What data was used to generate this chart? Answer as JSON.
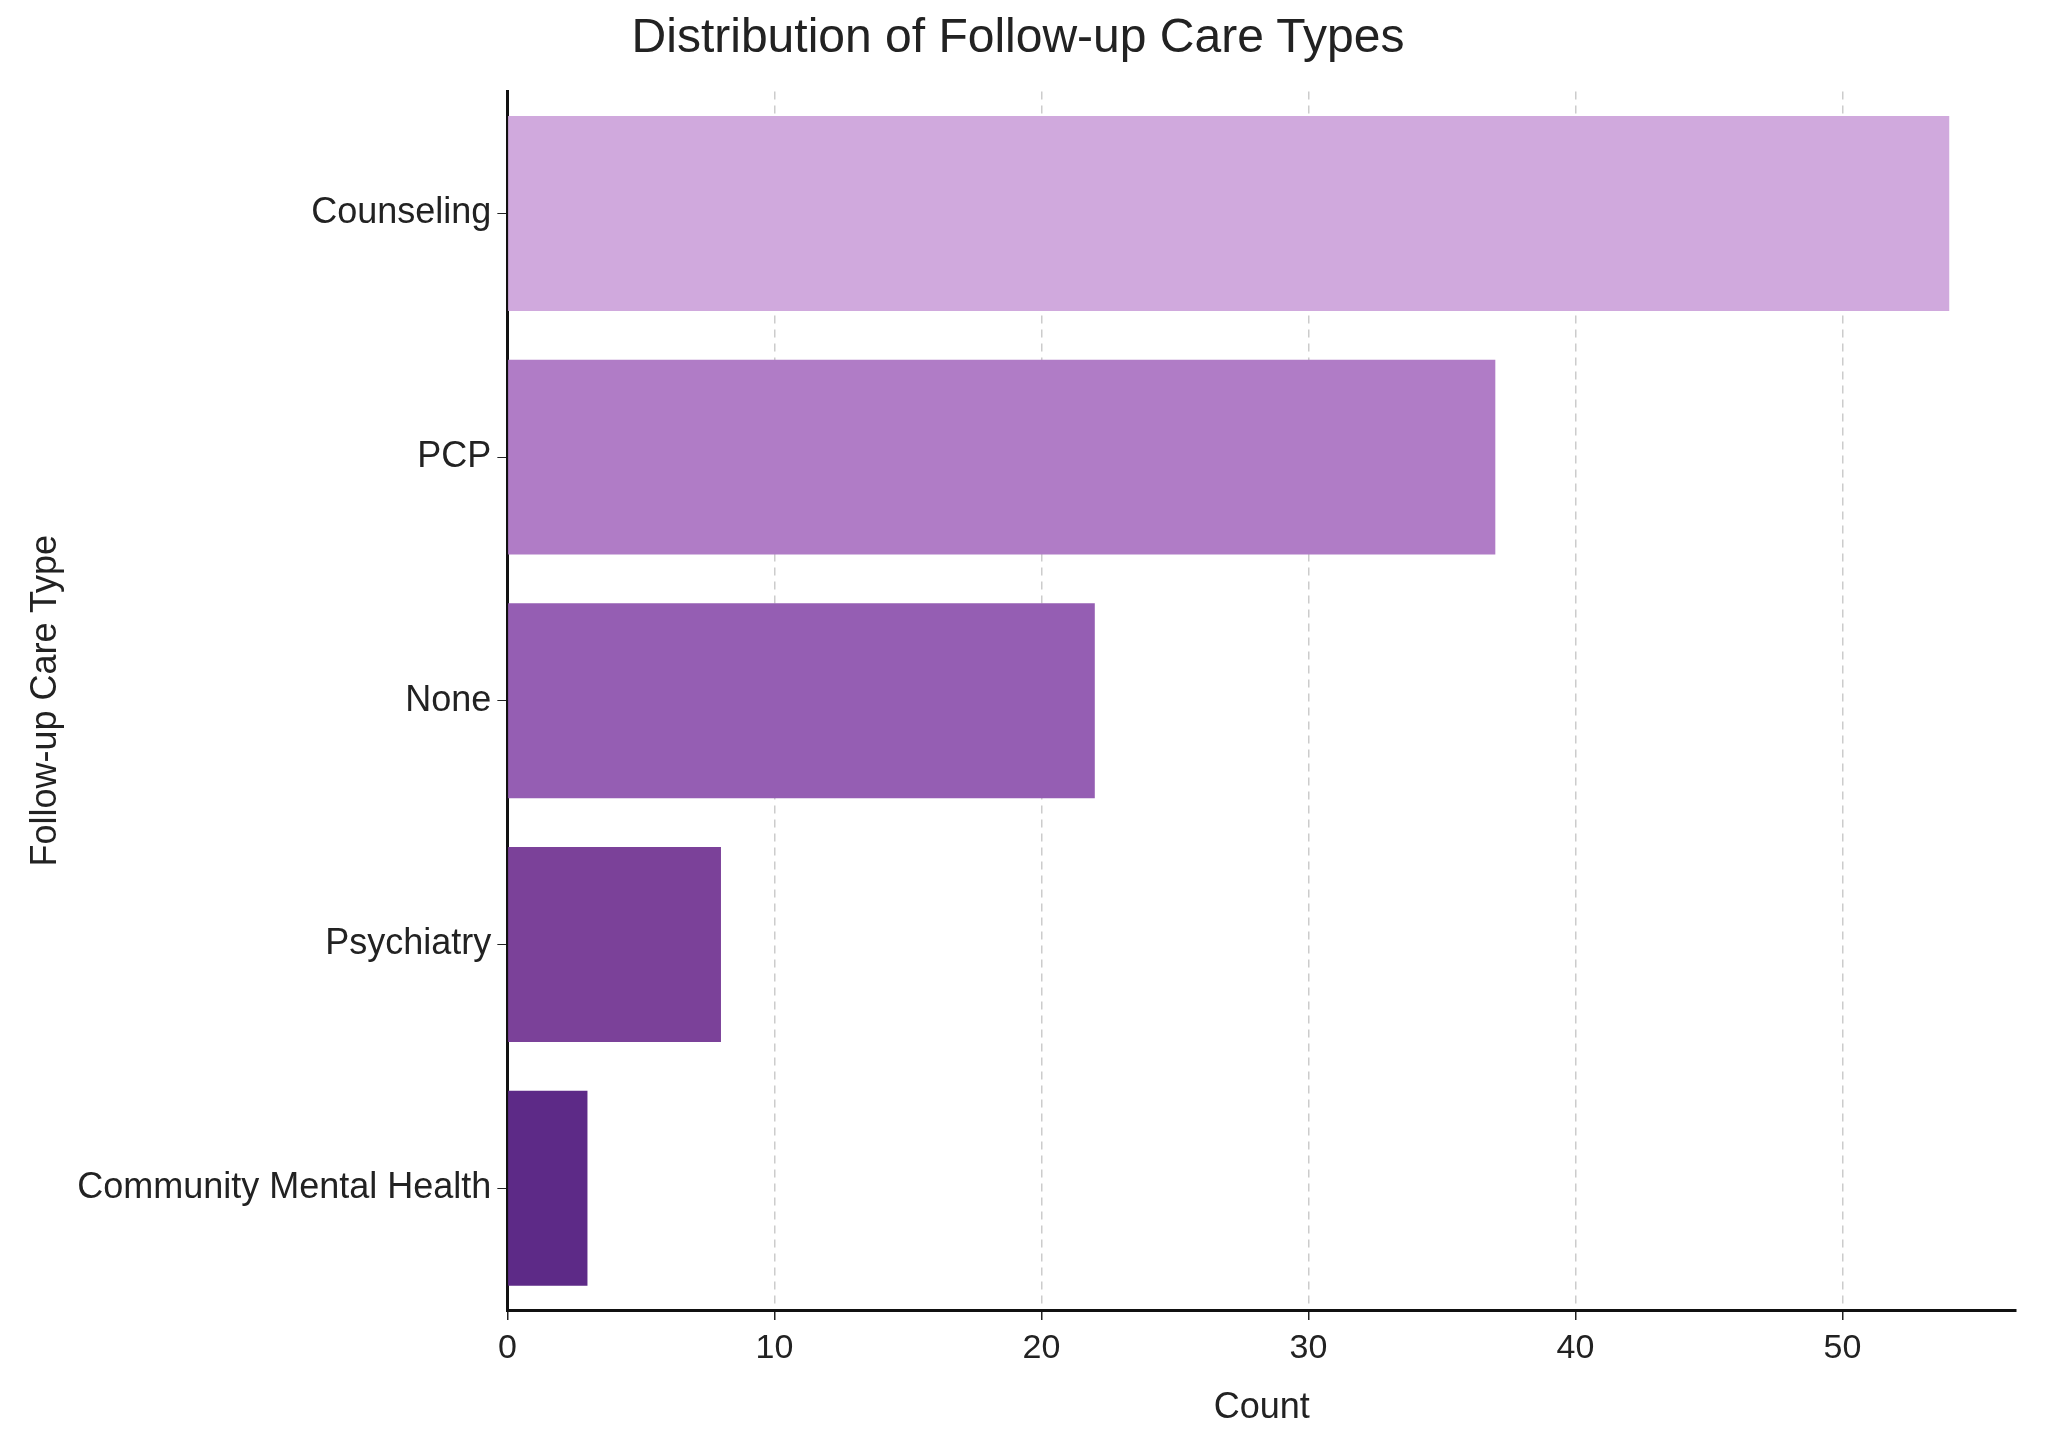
{
  "chart_data": {
    "type": "bar",
    "orientation": "horizontal",
    "title": "Distribution of Follow-up Care Types",
    "xlabel": "Count",
    "ylabel": "Follow-up Care Type",
    "categories": [
      "Counseling",
      "PCP",
      "None",
      "Psychiatry",
      "Community Mental Health"
    ],
    "values": [
      54,
      37,
      22,
      8,
      3
    ],
    "colors": [
      "#d0a9dd",
      "#b07cc6",
      "#955eb3",
      "#7b4199",
      "#5d2a87"
    ],
    "xlim": [
      0,
      56.5
    ],
    "xticks": [
      0,
      10,
      20,
      30,
      40,
      50
    ],
    "grid": "x",
    "legend": false
  }
}
